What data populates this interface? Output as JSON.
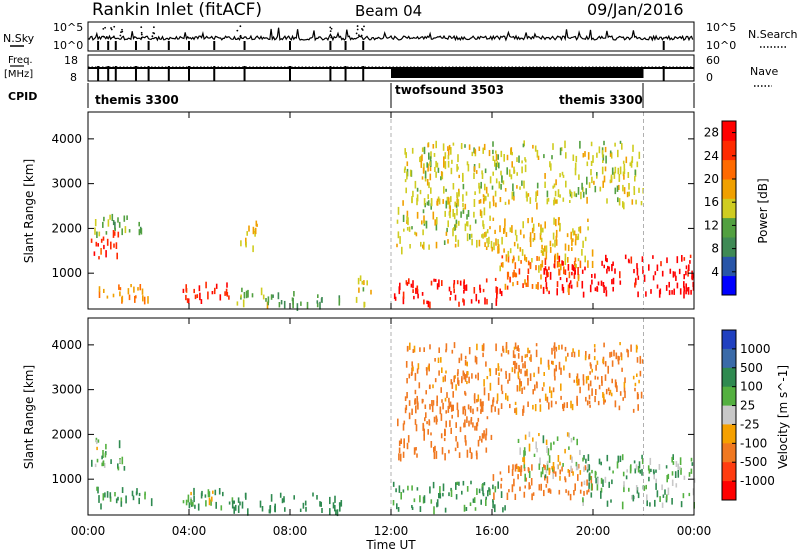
{
  "header": {
    "title": "Rankin Inlet (fitACF)",
    "beam": "Beam 04",
    "date": "09/Jan/2016"
  },
  "top_panel": {
    "nsky_label": "N.Sky",
    "nsearch_label": "N.Search",
    "left_ticks": [
      "10^5",
      "10^0"
    ],
    "right_ticks": [
      "10^5",
      "10^0"
    ],
    "freq_label_1": "Freq.",
    "freq_label_2": "[MHz]",
    "freq_ticks": [
      "18",
      "8"
    ],
    "nave_label": "Nave",
    "nave_ticks": [
      "60",
      "0"
    ],
    "cpid_label": "CPID",
    "cpid_segments": [
      "themis 3300",
      "twofsound 3503",
      "themis 3300"
    ]
  },
  "colors": {
    "power_scale": [
      "#0000ff",
      "#2855a8",
      "#3f8a55",
      "#52a040",
      "#cfcc20",
      "#f0a000",
      "#ff6a00",
      "#ff2a00",
      "#ff0000"
    ],
    "velocity_scale": [
      "#2040c0",
      "#3a6aa8",
      "#2f8a50",
      "#54b040",
      "#c8c8c8",
      "#f5a000",
      "#f07820",
      "#ff3c10",
      "#ff0000"
    ]
  },
  "chart_data": [
    {
      "type": "heatmap",
      "name": "power",
      "ylabel": "Slant Range [km]",
      "xlabel": "",
      "x_ticks": [
        "00:00",
        "04:00",
        "08:00",
        "12:00",
        "16:00",
        "20:00",
        "00:00"
      ],
      "xlim_hours": [
        0,
        24
      ],
      "ylim": [
        200,
        4600
      ],
      "y_ticks": [
        1000,
        2000,
        3000,
        4000
      ],
      "colorbar_label": "Power [dB]",
      "colorbar_ticks": [
        "4",
        "8",
        "12",
        "16",
        "20",
        "24",
        "28"
      ],
      "colorbar_range": [
        0,
        30
      ],
      "regions": [
        {
          "t": [
            0.1,
            1.3
          ],
          "r": [
            1300,
            1900
          ],
          "v": 26
        },
        {
          "t": [
            0.1,
            2.2
          ],
          "r": [
            1850,
            2300
          ],
          "v": 12
        },
        {
          "t": [
            0.2,
            2.6
          ],
          "r": [
            380,
            750
          ],
          "v": 20
        },
        {
          "t": [
            3.7,
            5.8
          ],
          "r": [
            300,
            750
          ],
          "v": 26
        },
        {
          "t": [
            5.6,
            7.2
          ],
          "r": [
            270,
            640
          ],
          "v": 14
        },
        {
          "t": [
            6.0,
            6.7
          ],
          "r": [
            1500,
            2200
          ],
          "v": 17
        },
        {
          "t": [
            7.2,
            10.0
          ],
          "r": [
            250,
            550
          ],
          "v": 10
        },
        {
          "t": [
            10.6,
            11.3
          ],
          "r": [
            250,
            900
          ],
          "v": 16
        },
        {
          "t": [
            12.0,
            16.5
          ],
          "r": [
            280,
            850
          ],
          "v": 27
        },
        {
          "t": [
            16.3,
            19.5
          ],
          "r": [
            600,
            1350
          ],
          "v": 22
        },
        {
          "t": [
            18.0,
            24.0
          ],
          "r": [
            500,
            1350
          ],
          "v": 29
        },
        {
          "t": [
            12.2,
            16.0
          ],
          "r": [
            1500,
            2700
          ],
          "v": 15
        },
        {
          "t": [
            16.0,
            20.0
          ],
          "r": [
            1100,
            2200
          ],
          "v": 17
        },
        {
          "t": [
            12.5,
            22.0
          ],
          "r": [
            2500,
            3900
          ],
          "v": 15
        }
      ]
    },
    {
      "type": "heatmap",
      "name": "velocity",
      "ylabel": "Slant Range [km]",
      "xlabel": "Time UT",
      "x_ticks": [
        "00:00",
        "04:00",
        "08:00",
        "12:00",
        "16:00",
        "20:00",
        "00:00"
      ],
      "xlim_hours": [
        0,
        24
      ],
      "ylim": [
        200,
        4600
      ],
      "y_ticks": [
        1000,
        2000,
        3000,
        4000
      ],
      "colorbar_label": "Velocity [m s^-1]",
      "colorbar_ticks": [
        "1000",
        "500",
        "100",
        "25",
        "-25",
        "-100",
        "-500",
        "-1000"
      ],
      "colorbar_range": [
        -1200,
        1200
      ],
      "regions": [
        {
          "t": [
            0.1,
            1.5
          ],
          "r": [
            1200,
            1900
          ],
          "v": 60
        },
        {
          "t": [
            0.2,
            2.6
          ],
          "r": [
            380,
            800
          ],
          "v": 120
        },
        {
          "t": [
            3.7,
            5.8
          ],
          "r": [
            300,
            750
          ],
          "v": 150
        },
        {
          "t": [
            4.0,
            5.0
          ],
          "r": [
            380,
            700
          ],
          "v": 0
        },
        {
          "t": [
            5.6,
            10.0
          ],
          "r": [
            250,
            650
          ],
          "v": 200
        },
        {
          "t": [
            12.0,
            16.5
          ],
          "r": [
            280,
            900
          ],
          "v": 140
        },
        {
          "t": [
            16.0,
            20.0
          ],
          "r": [
            600,
            1300
          ],
          "v": -200
        },
        {
          "t": [
            17.0,
            19.5
          ],
          "r": [
            1000,
            2000
          ],
          "v": 5
        },
        {
          "t": [
            19.5,
            24.0
          ],
          "r": [
            400,
            1500
          ],
          "v": 90
        },
        {
          "t": [
            12.2,
            16.0
          ],
          "r": [
            1500,
            2700
          ],
          "v": -300
        },
        {
          "t": [
            12.5,
            22.0
          ],
          "r": [
            2500,
            4000
          ],
          "v": -150
        }
      ]
    }
  ]
}
